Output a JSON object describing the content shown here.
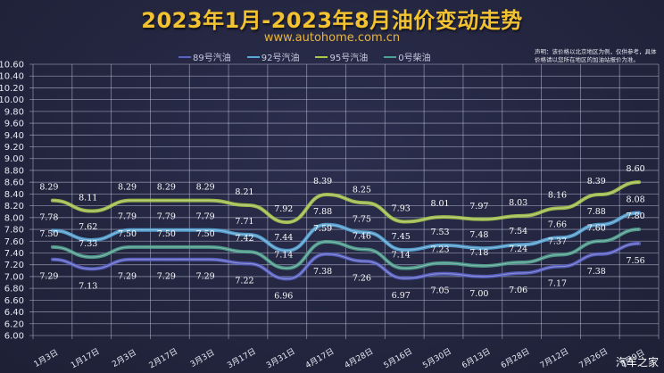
{
  "header": {
    "title": "2023年1月-2023年8月油价变动走势",
    "url": "www.autohome.com.cn",
    "disclaimer": "声明：该价格以北京地区为例，仅供参考，具体价格请以您所在地区的加油站报价为准。",
    "watermark": "汽车之家"
  },
  "legend": [
    {
      "label": "89号汽油",
      "color": "#5b63c9"
    },
    {
      "label": "92号汽油",
      "color": "#58a9da"
    },
    {
      "label": "95号汽油",
      "color": "#a8c94a"
    },
    {
      "label": "0号柴油",
      "color": "#4fa28f"
    }
  ],
  "chart_data": {
    "type": "line",
    "title": "2023年1月-2023年8月油价变动走势",
    "xlabel": "",
    "ylabel": "",
    "ylim": [
      6.0,
      10.6
    ],
    "ytick_step": 0.2,
    "yticks": [
      "6.00",
      "6.20",
      "6.40",
      "6.60",
      "6.80",
      "7.00",
      "7.20",
      "7.40",
      "7.60",
      "7.80",
      "8.00",
      "8.20",
      "8.40",
      "8.60",
      "8.80",
      "9.00",
      "9.20",
      "9.40",
      "9.60",
      "9.80",
      "10.00",
      "10.20",
      "10.40",
      "10.60"
    ],
    "grid": true,
    "legend_position": "top",
    "categories": [
      "1月3日",
      "1月17日",
      "2月3日",
      "2月17日",
      "3月3日",
      "3月17日",
      "3月31日",
      "4月17日",
      "4月28日",
      "5月16日",
      "5月30日",
      "6月13日",
      "6月28日",
      "7月12日",
      "7月26日",
      "8月9日"
    ],
    "series": [
      {
        "name": "89号汽油",
        "color": "#5b63c9",
        "values": [
          7.29,
          7.13,
          7.29,
          7.29,
          7.29,
          7.22,
          6.96,
          7.38,
          7.26,
          6.97,
          7.05,
          7.0,
          7.06,
          7.17,
          7.38,
          7.56
        ]
      },
      {
        "name": "92号汽油",
        "color": "#58a9da",
        "values": [
          7.78,
          7.62,
          7.79,
          7.79,
          7.79,
          7.71,
          7.44,
          7.88,
          7.75,
          7.45,
          7.53,
          7.48,
          7.54,
          7.66,
          7.88,
          8.08
        ]
      },
      {
        "name": "95号汽油",
        "color": "#a8c94a",
        "values": [
          8.29,
          8.11,
          8.29,
          8.29,
          8.29,
          8.21,
          7.92,
          8.39,
          8.25,
          7.93,
          8.01,
          7.97,
          8.03,
          8.16,
          8.39,
          8.6
        ]
      },
      {
        "name": "0号柴油",
        "color": "#4fa28f",
        "values": [
          7.5,
          7.33,
          7.5,
          7.5,
          7.5,
          7.42,
          7.14,
          7.59,
          7.46,
          7.14,
          7.23,
          7.18,
          7.24,
          7.37,
          7.6,
          7.8
        ]
      }
    ]
  }
}
